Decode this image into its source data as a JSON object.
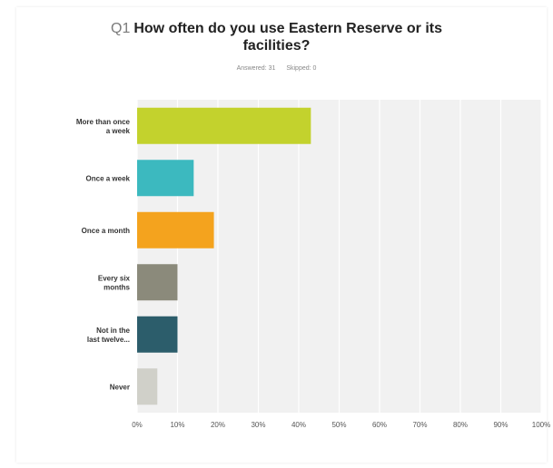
{
  "question": {
    "number": "Q1",
    "title": "How often do you use Eastern Reserve or its facilities?"
  },
  "responses": {
    "answered": "Answered: 31",
    "skipped": "Skipped: 0"
  },
  "chart_data": {
    "type": "bar",
    "orientation": "horizontal",
    "categories": [
      [
        "More than once",
        "a week"
      ],
      [
        "Once a week"
      ],
      [
        "Once a month"
      ],
      [
        "Every six",
        "months"
      ],
      [
        "Not in the",
        "last twelve..."
      ],
      [
        "Never"
      ]
    ],
    "values": [
      43,
      14,
      19,
      10,
      10,
      5
    ],
    "colors": [
      "#c3d22d",
      "#3cb9bf",
      "#f4a31e",
      "#8b8a7b",
      "#2c5d6b",
      "#d0d0c9"
    ],
    "xlim": [
      0,
      100
    ],
    "tick_labels": [
      "0%",
      "10%",
      "20%",
      "30%",
      "40%",
      "50%",
      "60%",
      "70%",
      "80%",
      "90%",
      "100%"
    ],
    "grid": true,
    "plot_background": "#f1f1f1"
  }
}
